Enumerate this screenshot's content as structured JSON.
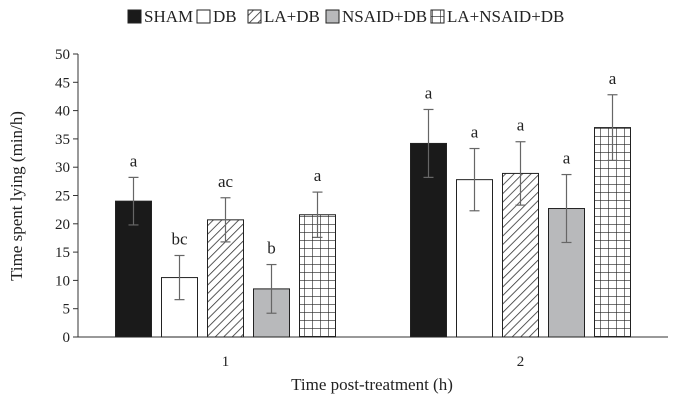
{
  "chart_data": {
    "type": "bar",
    "title": "",
    "xlabel": "Time post-treatment (h)",
    "ylabel": "Time spent lying (min/h)",
    "ylim": [
      0,
      50
    ],
    "yticks": [
      0,
      5,
      10,
      15,
      20,
      25,
      30,
      35,
      40,
      45,
      50
    ],
    "categories": [
      "1",
      "2"
    ],
    "legend_position": "top",
    "grid": false,
    "series": [
      {
        "name": "SHAM",
        "pattern": "solid-black",
        "color": "#1a1a1a",
        "values": [
          24.0,
          34.2
        ],
        "errors": [
          4.2,
          6.0
        ],
        "significance": [
          "a",
          "a"
        ]
      },
      {
        "name": "DB",
        "pattern": "white",
        "color": "#ffffff",
        "values": [
          10.5,
          27.8
        ],
        "errors": [
          3.9,
          5.5
        ],
        "significance": [
          "bc",
          "a"
        ]
      },
      {
        "name": "LA+DB",
        "pattern": "diagonal-hatch",
        "color": "#ffffff",
        "values": [
          20.7,
          28.9
        ],
        "errors": [
          3.9,
          5.6
        ],
        "significance": [
          "ac",
          "a"
        ]
      },
      {
        "name": "NSAID+DB",
        "pattern": "solid-gray",
        "color": "#b8b9bb",
        "values": [
          8.5,
          22.7
        ],
        "errors": [
          4.3,
          6.0
        ],
        "significance": [
          "b",
          "a"
        ]
      },
      {
        "name": "LA+NSAID+DB",
        "pattern": "grid-hatch",
        "color": "#ffffff",
        "values": [
          21.6,
          37.0
        ],
        "errors": [
          4.0,
          5.8
        ],
        "significance": [
          "a",
          "a"
        ]
      }
    ]
  }
}
